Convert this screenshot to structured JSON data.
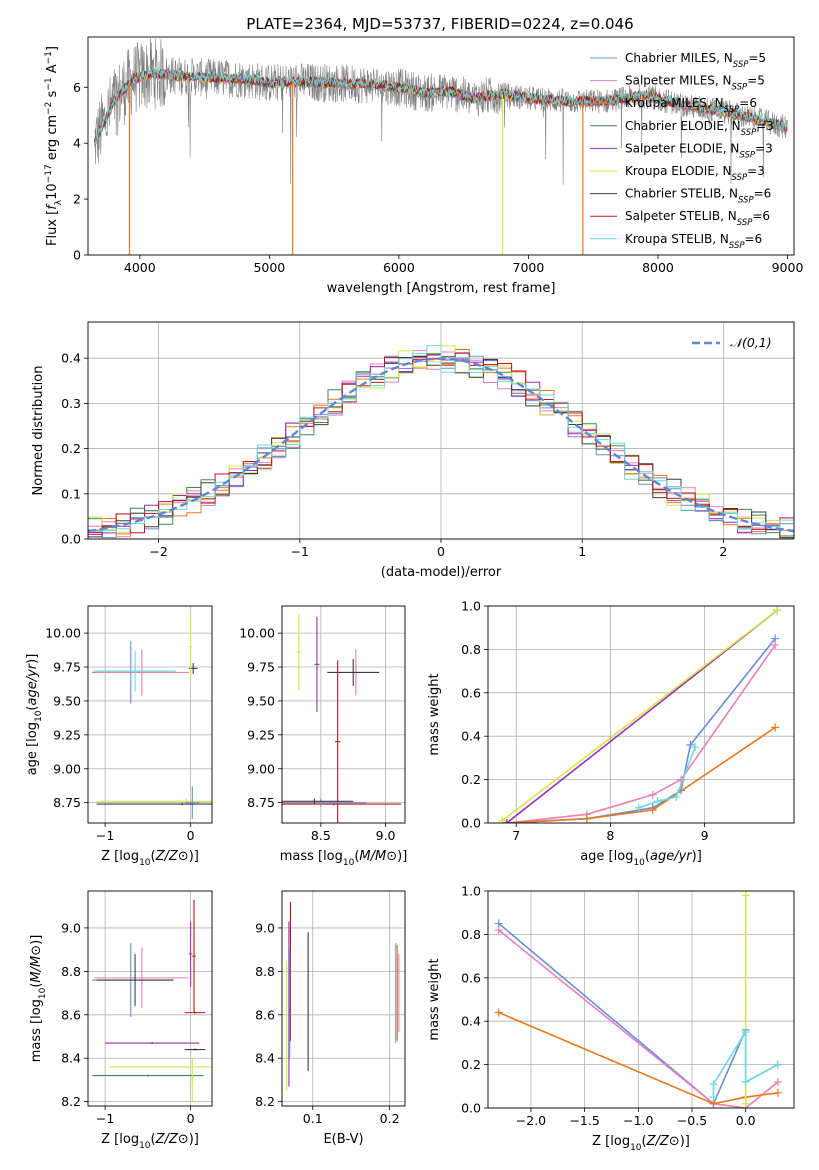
{
  "figure_title": "PLATE=2364, MJD=53737, FIBERID=0224, z=0.046",
  "chart_data": [
    {
      "id": "spectrum",
      "type": "line",
      "xlabel": "wavelength [Angstrom, rest frame]",
      "ylabel": "Flux [f_λ 10⁻¹⁷ erg cm⁻² s⁻¹ A⁻¹]",
      "xlim": [
        3600,
        9050
      ],
      "ylim": [
        0,
        7.8
      ],
      "xticks": [
        4000,
        5000,
        6000,
        7000,
        8000,
        9000
      ],
      "yticks": [
        0,
        2,
        4,
        6
      ],
      "grid": false,
      "legend_placement": "upper-right",
      "series": [
        {
          "name": "Chabrier MILES, N_SSP=5",
          "label_main": "Chabrier MILES, N",
          "label_sub": "SSP",
          "label_tail": "=5",
          "color": "#6a8fd9"
        },
        {
          "name": "Salpeter MILES, N_SSP=5",
          "label_main": "Salpeter MILES, N",
          "label_sub": "SSP",
          "label_tail": "=5",
          "color": "#e77fba"
        },
        {
          "name": "Kroupa MILES, N_SSP=6",
          "label_main": "Kroupa MILES, N",
          "label_sub": "SSP",
          "label_tail": "=6",
          "color": "#e8791f"
        },
        {
          "name": "Chabrier ELODIE, N_SSP=3",
          "label_main": "Chabrier ELODIE, N",
          "label_sub": "SSP",
          "label_tail": "=3",
          "color": "#3e8a52"
        },
        {
          "name": "Salpeter ELODIE, N_SSP=3",
          "label_main": "Salpeter ELODIE, N",
          "label_sub": "SSP",
          "label_tail": "=3",
          "color": "#9b2fae"
        },
        {
          "name": "Kroupa ELODIE, N_SSP=3",
          "label_main": "Kroupa ELODIE, N",
          "label_sub": "SSP",
          "label_tail": "=3",
          "color": "#d6e64a"
        },
        {
          "name": "Chabrier STELIB, N_SSP=6",
          "label_main": "Chabrier STELIB, N",
          "label_sub": "SSP",
          "label_tail": "=6",
          "color": "#3d3d3d"
        },
        {
          "name": "Salpeter STELIB, N_SSP=6",
          "label_main": "Salpeter STELIB, N",
          "label_sub": "SSP",
          "label_tail": "=6",
          "color": "#c0141c"
        },
        {
          "name": "Kroupa STELIB, N_SSP=6",
          "label_main": "Kroupa STELIB, N",
          "label_sub": "SSP",
          "label_tail": "=6",
          "color": "#6fd8dc"
        }
      ],
      "data_color": "#808080",
      "continuum_points": [
        [
          3650,
          4.0
        ],
        [
          3800,
          5.5
        ],
        [
          3950,
          6.3
        ],
        [
          4100,
          6.5
        ],
        [
          4300,
          6.4
        ],
        [
          4500,
          6.35
        ],
        [
          4800,
          6.3
        ],
        [
          5000,
          6.15
        ],
        [
          5200,
          6.2
        ],
        [
          5500,
          6.15
        ],
        [
          5800,
          6.1
        ],
        [
          6000,
          6.0
        ],
        [
          6200,
          5.8
        ],
        [
          6400,
          5.85
        ],
        [
          6563,
          5.6
        ],
        [
          6800,
          5.75
        ],
        [
          7000,
          5.6
        ],
        [
          7300,
          5.5
        ],
        [
          7600,
          5.5
        ],
        [
          7900,
          5.7
        ],
        [
          8200,
          5.35
        ],
        [
          8500,
          5.15
        ],
        [
          8800,
          4.8
        ],
        [
          9000,
          4.55
        ]
      ]
    },
    {
      "id": "residuals",
      "type": "line",
      "xlabel": "(data-model)/error",
      "ylabel": "Normed distribution",
      "xlim": [
        -2.5,
        2.5
      ],
      "ylim": [
        0,
        0.48
      ],
      "xticks": [
        -2,
        -1,
        0,
        1,
        2
      ],
      "yticks": [
        0.0,
        0.1,
        0.2,
        0.3,
        0.4
      ],
      "grid": true,
      "legend_placement": "upper-right",
      "reference_curve": {
        "label": "𝒩(0,1)",
        "color": "#5f87d6",
        "style": "dashed"
      },
      "histogram_bin_width": 0.1
    },
    {
      "id": "age-vs-Z",
      "type": "scatter",
      "xlabel": "Z [log10(Z/Z⊙)]",
      "ylabel": "age [log10(age/yr)]",
      "xlim": [
        -1.2,
        0.25
      ],
      "ylim": [
        8.6,
        10.2
      ],
      "xticks": [
        -1,
        0
      ],
      "yticks": [
        8.75,
        9.0,
        9.25,
        9.5,
        9.75,
        10.0
      ],
      "grid": true,
      "markers": [
        {
          "x": -0.7,
          "y": 9.71,
          "xerr": 0.45,
          "yerr": 0.23,
          "color": "#6a8fd9"
        },
        {
          "x": -0.57,
          "y": 9.71,
          "xerr": 0.55,
          "yerr": 0.17,
          "color": "#e77fba"
        },
        {
          "x": -0.65,
          "y": 9.72,
          "xerr": 0.48,
          "yerr": 0.15,
          "color": "#6fd8dc"
        },
        {
          "x": 0.03,
          "y": 9.74,
          "xerr": 0.05,
          "yerr": 0.04,
          "color": "#3d3d3d"
        },
        {
          "x": -0.05,
          "y": 8.76,
          "xerr": 1.05,
          "yerr": 0.02,
          "color": "#d6e64a"
        },
        {
          "x": 0.0,
          "y": 9.9,
          "xerr": 0.02,
          "yerr": 0.25,
          "color": "#d6e64a"
        },
        {
          "x": 0.02,
          "y": 8.75,
          "xerr": 0.08,
          "yerr": 0.12,
          "color": "#6a8fd9"
        },
        {
          "x": -0.1,
          "y": 8.74,
          "xerr": 1.0,
          "yerr": 0.01,
          "color": "#3d3d3d"
        }
      ]
    },
    {
      "id": "age-vs-mass",
      "type": "scatter",
      "xlabel": "mass [log10(M/M⊙)]",
      "ylabel": "",
      "xlim": [
        8.2,
        9.15
      ],
      "ylim": [
        8.6,
        10.2
      ],
      "xticks": [
        8.5,
        9.0
      ],
      "yticks": [
        8.75,
        9.0,
        9.25,
        9.5,
        9.75,
        10.0
      ],
      "grid": true,
      "markers": [
        {
          "x": 8.77,
          "y": 9.71,
          "xerr": 0.15,
          "yerr": 0.17,
          "color": "#e77fba"
        },
        {
          "x": 8.75,
          "y": 9.71,
          "xerr": 0.2,
          "yerr": 0.1,
          "color": "#3d3d3d"
        },
        {
          "x": 8.33,
          "y": 9.86,
          "xerr": 0.02,
          "yerr": 0.28,
          "color": "#d6e64a"
        },
        {
          "x": 8.47,
          "y": 9.77,
          "xerr": 0.02,
          "yerr": 0.35,
          "color": "#9b2fae"
        },
        {
          "x": 8.63,
          "y": 9.2,
          "xerr": 0.02,
          "yerr": 0.6,
          "color": "#c0141c"
        },
        {
          "x": 8.6,
          "y": 8.74,
          "xerr": 0.52,
          "yerr": 0.01,
          "color": "#c0141c"
        },
        {
          "x": 8.5,
          "y": 8.75,
          "xerr": 0.35,
          "yerr": 0.03,
          "color": "#6a8fd9"
        },
        {
          "x": 8.45,
          "y": 8.76,
          "xerr": 0.3,
          "yerr": 0.02,
          "color": "#3d3d3d"
        }
      ]
    },
    {
      "id": "massweight-vs-age",
      "type": "line",
      "xlabel": "age [log10(age/yr)]",
      "ylabel": "mass weight",
      "xlim": [
        6.7,
        9.95
      ],
      "ylim": [
        0,
        1
      ],
      "xticks": [
        7,
        8,
        9
      ],
      "yticks": [
        0.0,
        0.2,
        0.4,
        0.6,
        0.8,
        1.0
      ],
      "grid": true,
      "series": [
        {
          "name": "Chabrier MILES",
          "color": "#6a8fd9",
          "x": [
            6.9,
            7.75,
            8.45,
            8.75,
            8.85,
            9.75
          ],
          "y": [
            0.0,
            0.02,
            0.07,
            0.15,
            0.36,
            0.85
          ]
        },
        {
          "name": "Salpeter MILES",
          "color": "#e77fba",
          "x": [
            6.9,
            7.75,
            8.45,
            8.75,
            9.75
          ],
          "y": [
            0.0,
            0.04,
            0.13,
            0.2,
            0.82
          ]
        },
        {
          "name": "Kroupa MILES",
          "color": "#e8791f",
          "x": [
            6.9,
            7.75,
            8.45,
            9.75
          ],
          "y": [
            0.0,
            0.02,
            0.06,
            0.44
          ]
        },
        {
          "name": "Salpeter ELODIE",
          "color": "#9b2fae",
          "x": [
            6.9,
            9.77
          ],
          "y": [
            0.0,
            0.98
          ]
        },
        {
          "name": "Kroupa ELODIE",
          "color": "#d6e64a",
          "x": [
            6.85,
            9.77
          ],
          "y": [
            0.01,
            0.98
          ]
        },
        {
          "name": "Kroupa STELIB",
          "color": "#6fd8dc",
          "x": [
            8.3,
            8.5,
            8.7,
            8.9
          ],
          "y": [
            0.07,
            0.1,
            0.12,
            0.35
          ]
        }
      ]
    },
    {
      "id": "mass-vs-Z",
      "type": "scatter",
      "xlabel": "Z [log10(Z/Z⊙)]",
      "ylabel": "mass [log10(M/M⊙)]",
      "xlim": [
        -1.2,
        0.25
      ],
      "ylim": [
        8.18,
        9.17
      ],
      "xticks": [
        -1,
        0
      ],
      "yticks": [
        8.2,
        8.4,
        8.6,
        8.8,
        9.0
      ],
      "grid": true,
      "markers": [
        {
          "x": -0.7,
          "y": 8.76,
          "xerr": 0.45,
          "yerr": 0.17,
          "color": "#6a8fd9"
        },
        {
          "x": -0.57,
          "y": 8.77,
          "xerr": 0.55,
          "yerr": 0.14,
          "color": "#e77fba"
        },
        {
          "x": -0.65,
          "y": 8.76,
          "xerr": 0.45,
          "yerr": 0.12,
          "color": "#3d3d3d"
        },
        {
          "x": -0.45,
          "y": 8.47,
          "xerr": 0.55,
          "yerr": 0.005,
          "color": "#9b2fae"
        },
        {
          "x": -0.05,
          "y": 8.36,
          "xerr": 0.9,
          "yerr": 0.005,
          "color": "#d6e64a"
        },
        {
          "x": -0.5,
          "y": 8.32,
          "xerr": 0.65,
          "yerr": 0.005,
          "color": "#3e8a52"
        },
        {
          "x": 0.0,
          "y": 8.88,
          "xerr": 0.02,
          "yerr": 0.15,
          "color": "#9b2fae"
        },
        {
          "x": 0.04,
          "y": 8.87,
          "xerr": 0.02,
          "yerr": 0.26,
          "color": "#c0141c"
        },
        {
          "x": 0.05,
          "y": 8.61,
          "xerr": 0.12,
          "yerr": 0.005,
          "color": "#c0141c"
        },
        {
          "x": 0.05,
          "y": 8.44,
          "xerr": 0.12,
          "yerr": 0.005,
          "color": "#3d3d3d"
        },
        {
          "x": 0.02,
          "y": 8.3,
          "xerr": 0.02,
          "yerr": 0.1,
          "color": "#d6e64a"
        }
      ]
    },
    {
      "id": "mass-vs-ebv",
      "type": "scatter",
      "xlabel": "E(B-V)",
      "ylabel": "",
      "xlim": [
        0.06,
        0.22
      ],
      "ylim": [
        8.18,
        9.17
      ],
      "xticks": [
        0.1,
        0.2
      ],
      "yticks": [
        8.2,
        8.4,
        8.6,
        8.8,
        9.0
      ],
      "grid": true,
      "markers": [
        {
          "x": 0.066,
          "y": 8.55,
          "yerr": 0.3,
          "color": "#d6e64a"
        },
        {
          "x": 0.069,
          "y": 8.65,
          "yerr": 0.38,
          "color": "#9b2fae"
        },
        {
          "x": 0.071,
          "y": 8.8,
          "yerr": 0.32,
          "color": "#c0141c"
        },
        {
          "x": 0.07,
          "y": 8.65,
          "yerr": 0.25,
          "color": "#6a8fd9"
        },
        {
          "x": 0.094,
          "y": 8.66,
          "yerr": 0.32,
          "color": "#3d3d3d"
        },
        {
          "x": 0.208,
          "y": 8.7,
          "yerr": 0.23,
          "color": "#6a8fd9"
        },
        {
          "x": 0.21,
          "y": 8.7,
          "yerr": 0.22,
          "color": "#e8791f"
        },
        {
          "x": 0.212,
          "y": 8.7,
          "yerr": 0.18,
          "color": "#e77fba"
        }
      ]
    },
    {
      "id": "massweight-vs-Z",
      "type": "line",
      "xlabel": "Z [log10(Z/Z⊙)]",
      "ylabel": "mass weight",
      "xlim": [
        -2.4,
        0.45
      ],
      "ylim": [
        0,
        1
      ],
      "xticks": [
        -2.0,
        -1.5,
        -1.0,
        -0.5,
        0.0
      ],
      "yticks": [
        0.0,
        0.2,
        0.4,
        0.6,
        0.8,
        1.0
      ],
      "grid": true,
      "series": [
        {
          "name": "Chabrier MILES",
          "color": "#6a8fd9",
          "x": [
            -2.3,
            -0.3,
            0.0,
            0.0,
            0.3
          ],
          "y": [
            0.85,
            0.02,
            0.36,
            0.12,
            0.2
          ]
        },
        {
          "name": "Salpeter MILES",
          "color": "#e77fba",
          "x": [
            -2.3,
            -0.3,
            0.0,
            0.3
          ],
          "y": [
            0.82,
            0.02,
            0.0,
            0.12
          ]
        },
        {
          "name": "Kroupa MILES",
          "color": "#e8791f",
          "x": [
            -2.3,
            -0.3,
            0.0,
            0.3
          ],
          "y": [
            0.44,
            0.02,
            0.05,
            0.07
          ]
        },
        {
          "name": "Kroupa ELODIE",
          "color": "#d6e64a",
          "x": [
            0.0,
            0.0
          ],
          "y": [
            0.98,
            0.02
          ]
        },
        {
          "name": "Kroupa STELIB",
          "color": "#6fd8dc",
          "x": [
            -0.3,
            -0.3,
            0.0,
            0.0,
            0.3
          ],
          "y": [
            0.05,
            0.11,
            0.35,
            0.12,
            0.2
          ]
        }
      ]
    }
  ]
}
